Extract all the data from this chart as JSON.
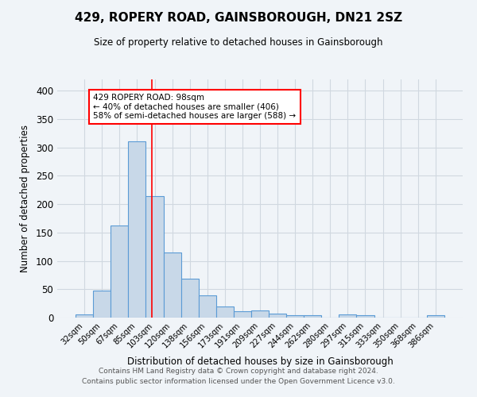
{
  "title": "429, ROPERY ROAD, GAINSBOROUGH, DN21 2SZ",
  "subtitle": "Size of property relative to detached houses in Gainsborough",
  "xlabel": "Distribution of detached houses by size in Gainsborough",
  "ylabel": "Number of detached properties",
  "footnote1": "Contains HM Land Registry data © Crown copyright and database right 2024.",
  "footnote2": "Contains public sector information licensed under the Open Government Licence v3.0.",
  "bar_labels": [
    "32sqm",
    "50sqm",
    "67sqm",
    "85sqm",
    "103sqm",
    "120sqm",
    "138sqm",
    "156sqm",
    "173sqm",
    "191sqm",
    "209sqm",
    "227sqm",
    "244sqm",
    "262sqm",
    "280sqm",
    "297sqm",
    "315sqm",
    "333sqm",
    "350sqm",
    "368sqm",
    "386sqm"
  ],
  "bar_values": [
    5,
    47,
    163,
    311,
    214,
    115,
    68,
    39,
    19,
    11,
    12,
    7,
    4,
    4,
    0,
    5,
    4,
    0,
    0,
    0,
    4
  ],
  "bar_color": "#c8d8e8",
  "bar_edge_color": "#5b9bd5",
  "grid_color": "#d0d8e0",
  "background_color": "#f0f4f8",
  "red_line_x": 3.82,
  "annotation_text": "429 ROPERY ROAD: 98sqm\n← 40% of detached houses are smaller (406)\n58% of semi-detached houses are larger (588) →",
  "annotation_box_color": "white",
  "annotation_box_edge": "red",
  "ylim": [
    0,
    420
  ],
  "yticks": [
    0,
    50,
    100,
    150,
    200,
    250,
    300,
    350,
    400
  ]
}
